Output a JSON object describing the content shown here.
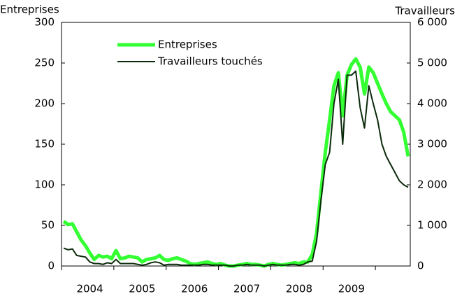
{
  "chart_data": {
    "type": "line",
    "y_label": "Entreprises",
    "y2_label": "Travailleurs",
    "categories": [
      null,
      null,
      null,
      null,
      null,
      null,
      "2004",
      null,
      null,
      null,
      null,
      null,
      null,
      null,
      null,
      null,
      null,
      null,
      "2005",
      null,
      null,
      null,
      null,
      null,
      null,
      null,
      null,
      null,
      null,
      null,
      "2006",
      null,
      null,
      null,
      null,
      null,
      null,
      null,
      null,
      null,
      null,
      null,
      "2007",
      null,
      null,
      null,
      null,
      null,
      null,
      null,
      null,
      null,
      null,
      null,
      "2008",
      null,
      null,
      null,
      null,
      null,
      null,
      null,
      null,
      null,
      null,
      null,
      "2009",
      null,
      null,
      null,
      null,
      null,
      null,
      null,
      null,
      null,
      null,
      null,
      null,
      null
    ],
    "series": [
      {
        "name": "Entreprises",
        "color": "#33ff33",
        "values": [
          55,
          51,
          52,
          42,
          32,
          25,
          16,
          8,
          13,
          11,
          12,
          9,
          19,
          9,
          10,
          12,
          11,
          10,
          5,
          8,
          9,
          10,
          13,
          8,
          7,
          9,
          10,
          8,
          6,
          3,
          2,
          3,
          4,
          5,
          3,
          2,
          3,
          1,
          0,
          0,
          1,
          2,
          3,
          2,
          2,
          1,
          0,
          2,
          3,
          2,
          1,
          2,
          3,
          4,
          3,
          5,
          5,
          14,
          40,
          90,
          140,
          180,
          222,
          238,
          185,
          235,
          248,
          255,
          245,
          212,
          245,
          238,
          225,
          212,
          200,
          190,
          185,
          180,
          165,
          135
        ]
      },
      {
        "name": "Travailleurs touchés",
        "color": "#0b2a0b",
        "axis": "y2",
        "values": [
          440,
          400,
          420,
          260,
          240,
          220,
          100,
          60,
          60,
          40,
          80,
          60,
          160,
          60,
          60,
          60,
          60,
          40,
          20,
          40,
          80,
          100,
          80,
          20,
          40,
          40,
          40,
          20,
          20,
          20,
          20,
          20,
          40,
          40,
          20,
          20,
          20,
          20,
          0,
          0,
          20,
          20,
          40,
          20,
          20,
          20,
          0,
          20,
          40,
          20,
          20,
          20,
          40,
          40,
          20,
          40,
          100,
          120,
          600,
          1600,
          2500,
          2800,
          4000,
          4600,
          3000,
          4700,
          4700,
          4800,
          3900,
          3400,
          4440,
          4000,
          3600,
          3000,
          2700,
          2500,
          2300,
          2100,
          2000,
          1940
        ]
      }
    ],
    "ylim": [
      0,
      300
    ],
    "yticks": [
      0,
      50,
      100,
      150,
      200,
      250,
      300
    ],
    "y2lim": [
      0,
      6000
    ],
    "y2ticks": [
      0,
      {
        "value": 1000,
        "label": "1 000"
      },
      {
        "value": 2000,
        "label": "2 000"
      },
      {
        "value": 3000,
        "label": "3 000"
      },
      {
        "value": 4000,
        "label": "4 000"
      },
      {
        "value": 5000,
        "label": "5 000"
      },
      {
        "value": 6000,
        "label": "6 000"
      }
    ],
    "legend": "top"
  }
}
